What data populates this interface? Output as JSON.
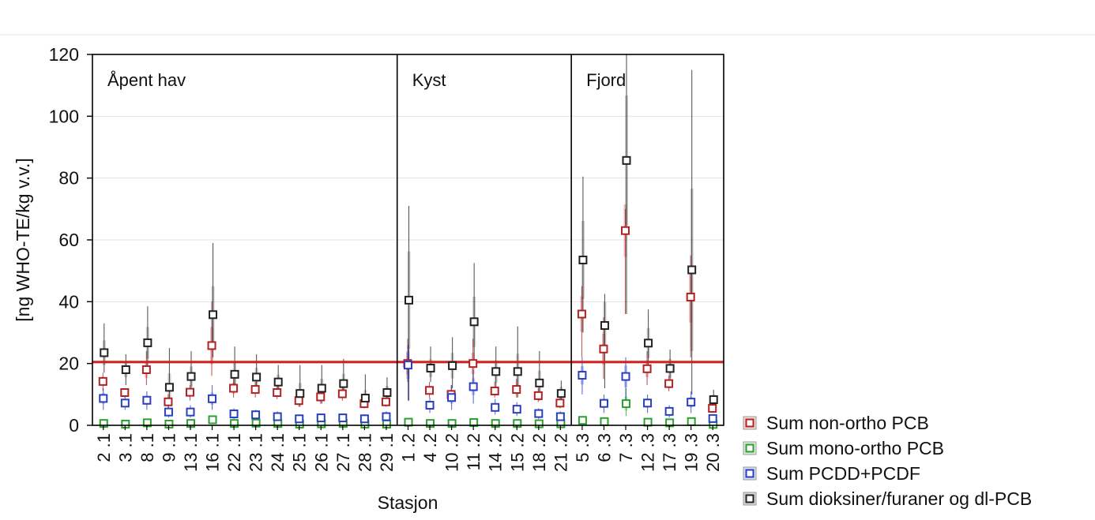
{
  "chart_data": {
    "type": "scatter",
    "title": "",
    "xlabel": "Stasjon",
    "ylabel": "[ng WHO-TE/kg v.v.]",
    "ylim": [
      0,
      120
    ],
    "yticks": [
      0,
      20,
      40,
      60,
      80,
      100,
      120
    ],
    "grid": true,
    "legend_position": "bottom-right",
    "reference_line": {
      "value": 20.5,
      "color": "#d62020"
    },
    "regions": [
      {
        "label": "Åpent hav",
        "start": 0,
        "end": 13
      },
      {
        "label": "Kyst",
        "start": 14,
        "end": 21
      },
      {
        "label": "Fjord",
        "start": 22,
        "end": 28
      }
    ],
    "categories": [
      "2 .1",
      "3 .1",
      "8 .1",
      "9 .1",
      "13 .1",
      "16 .1",
      "22 .1",
      "23 .1",
      "24 .1",
      "25 .1",
      "26 .1",
      "27 .1",
      "28 .1",
      "29 .1",
      "1 .2",
      "4 .2",
      "10 .2",
      "11 .2",
      "14 .2",
      "15 .2",
      "18 .2",
      "21 .2",
      "5 .3",
      "6 .3",
      "7 .3",
      "12 .3",
      "17 .3",
      "19 .3",
      "20 .3"
    ],
    "series": [
      {
        "name": "Sum non-ortho PCB",
        "color": "#b22222",
        "values": [
          14.2,
          10.6,
          18,
          7.6,
          10.7,
          25.8,
          12,
          11.6,
          10.6,
          8,
          9.2,
          10.2,
          7,
          7.6,
          20,
          11.3,
          10,
          20,
          11.1,
          11.6,
          9.6,
          7.2,
          36,
          24.7,
          63,
          18.3,
          13.5,
          41.5,
          5.5
        ],
        "lower": [
          11,
          9,
          13,
          5,
          8,
          16,
          9,
          9,
          8.5,
          6,
          7,
          8,
          5.5,
          6,
          14,
          9,
          8,
          14,
          9,
          9,
          7.5,
          5.5,
          22,
          15,
          36,
          13,
          11,
          22,
          4
        ],
        "upper": [
          17,
          12,
          24,
          10,
          13,
          40,
          16,
          14,
          13,
          11,
          12,
          13,
          9,
          9,
          28,
          14,
          13,
          28,
          14,
          15,
          12,
          9,
          45,
          35,
          70,
          24,
          16,
          55,
          7
        ]
      },
      {
        "name": "Sum mono-ortho PCB",
        "color": "#2ca02c",
        "values": [
          0.6,
          0.4,
          0.8,
          0.4,
          0.6,
          1.8,
          0.6,
          0.7,
          0.6,
          0.4,
          0.5,
          0.6,
          0.4,
          0.4,
          1.0,
          0.6,
          0.6,
          0.9,
          0.6,
          0.6,
          0.5,
          0.5,
          1.6,
          1.2,
          7,
          1.0,
          0.8,
          1.2,
          0.3
        ],
        "lower": [
          0.3,
          0.2,
          0.4,
          0.2,
          0.3,
          1.0,
          0.3,
          0.4,
          0.3,
          0.2,
          0.2,
          0.3,
          0.2,
          0.2,
          0.5,
          0.3,
          0.3,
          0.5,
          0.3,
          0.3,
          0.2,
          0.2,
          0.8,
          0.6,
          3,
          0.5,
          0.4,
          0.6,
          0.1
        ],
        "upper": [
          1.0,
          0.7,
          1.2,
          0.7,
          1.0,
          2.8,
          1.0,
          1.1,
          1.0,
          0.7,
          0.8,
          1.0,
          0.7,
          0.7,
          1.6,
          1.0,
          1.0,
          1.4,
          1.0,
          1.0,
          0.8,
          0.8,
          2.6,
          2.0,
          12,
          1.6,
          1.3,
          2.0,
          0.6
        ]
      },
      {
        "name": "Sum PCDD+PCDF",
        "color": "#2a3fbf",
        "values": [
          8.7,
          7.2,
          8.1,
          4.3,
          4.3,
          8.6,
          3.7,
          3.4,
          2.8,
          2.1,
          2.4,
          2.4,
          2.1,
          2.8,
          19.5,
          6.5,
          9.0,
          12.5,
          5.8,
          5.2,
          3.8,
          2.8,
          16.2,
          7.1,
          15.8,
          7.2,
          4.5,
          7.5,
          2.2
        ],
        "lower": [
          5,
          5,
          5,
          2.5,
          2.5,
          5,
          2,
          2,
          1.5,
          1,
          1.2,
          1.2,
          1,
          1.5,
          8,
          4,
          5,
          7,
          3.5,
          3,
          2,
          1.5,
          10,
          4,
          8,
          4,
          2.5,
          4,
          1
        ],
        "upper": [
          12,
          9.5,
          11,
          6.5,
          6.5,
          13,
          5.5,
          5,
          4.5,
          3.5,
          3.8,
          3.8,
          3.5,
          4.5,
          26,
          9,
          13,
          18,
          8.5,
          7.5,
          5.5,
          4.5,
          22,
          10,
          22,
          10,
          6.5,
          11,
          3.5
        ]
      },
      {
        "name": "Sum dioksiner/furaner og dl-PCB",
        "color": "#222222",
        "values": [
          23.5,
          18,
          26.7,
          12.3,
          15.8,
          35.8,
          16.5,
          15.6,
          14,
          10.3,
          12,
          13.5,
          8.8,
          10.6,
          40.5,
          18.5,
          19.3,
          33.5,
          17.4,
          17.4,
          13.7,
          10.3,
          53.5,
          32.3,
          85.7,
          26.6,
          18.4,
          50.3,
          8.3
        ],
        "lower": [
          17,
          13,
          18,
          7,
          11,
          22,
          11,
          11,
          10,
          6,
          7,
          9,
          6,
          7,
          8,
          14,
          12,
          20,
          11,
          9,
          8,
          6,
          30,
          12,
          36,
          18,
          12,
          10,
          5
        ],
        "upper": [
          33,
          23,
          38.5,
          25,
          24,
          59,
          25.5,
          23,
          19.5,
          19.5,
          19.5,
          21.5,
          16.5,
          15.5,
          71,
          25.5,
          28.5,
          52.5,
          25.5,
          32,
          24,
          14.5,
          80.5,
          42.5,
          120,
          37.5,
          24.5,
          115,
          11.5
        ]
      }
    ]
  }
}
